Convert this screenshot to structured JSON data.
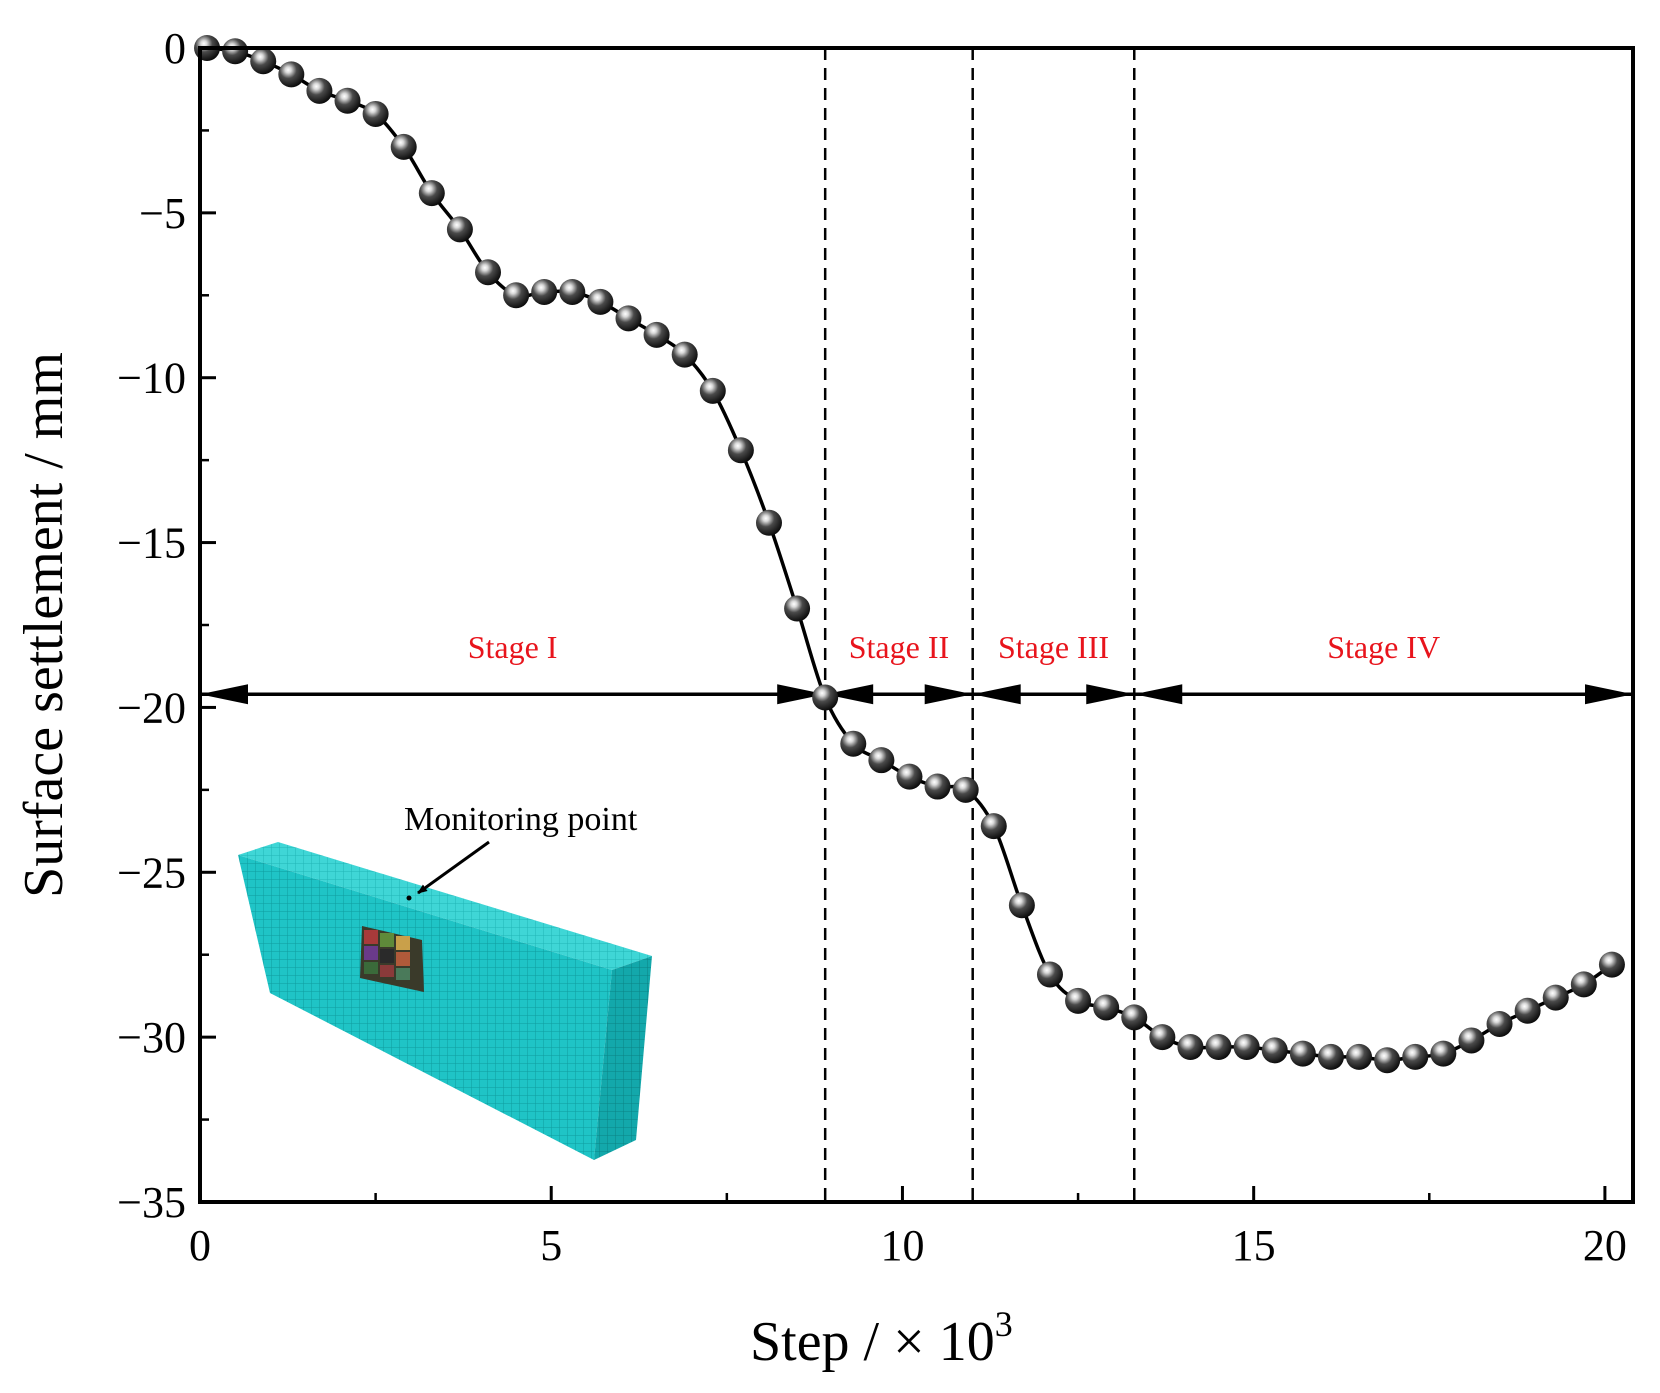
{
  "chart_data": {
    "type": "line",
    "xlabel": "Step / × 10",
    "xlabel_exponent": "3",
    "ylabel": "Surface settlement / mm",
    "xlim": [
      0,
      20.4
    ],
    "ylim": [
      -35,
      0
    ],
    "xticks": [
      0,
      5,
      10,
      15,
      20
    ],
    "xtick_labels": [
      "0",
      "5",
      "10",
      "15",
      "20"
    ],
    "yticks": [
      0,
      -5,
      -10,
      -15,
      -20,
      -25,
      -30,
      -35
    ],
    "ytick_labels": [
      "0",
      "−5",
      "−10",
      "−15",
      "−20",
      "−25",
      "−30",
      "−35"
    ],
    "marker": "sphere",
    "line_color": "#000000",
    "series": [
      {
        "name": "Surface settlement",
        "x": [
          0.1,
          0.5,
          0.9,
          1.3,
          1.7,
          2.1,
          2.5,
          2.9,
          3.3,
          3.7,
          4.1,
          4.5,
          4.9,
          5.3,
          5.7,
          6.1,
          6.5,
          6.9,
          7.3,
          7.7,
          8.1,
          8.5,
          8.9,
          9.3,
          9.7,
          10.1,
          10.5,
          10.9,
          11.3,
          11.7,
          12.1,
          12.5,
          12.9,
          13.3,
          13.7,
          14.1,
          14.5,
          14.9,
          15.3,
          15.7,
          16.1,
          16.5,
          16.9,
          17.3,
          17.7,
          18.1,
          18.5,
          18.9,
          19.3,
          19.7,
          20.1
        ],
        "y": [
          0,
          -0.1,
          -0.4,
          -0.8,
          -1.3,
          -1.6,
          -2.0,
          -3.0,
          -4.4,
          -5.5,
          -6.8,
          -7.5,
          -7.4,
          -7.4,
          -7.7,
          -8.2,
          -8.7,
          -9.3,
          -10.4,
          -12.2,
          -14.4,
          -17.0,
          -19.7,
          -21.1,
          -21.6,
          -22.1,
          -22.4,
          -22.5,
          -23.6,
          -26.0,
          -28.1,
          -28.9,
          -29.1,
          -29.4,
          -30.0,
          -30.3,
          -30.3,
          -30.3,
          -30.4,
          -30.5,
          -30.6,
          -30.6,
          -30.7,
          -30.6,
          -30.5,
          -30.1,
          -29.6,
          -29.2,
          -28.8,
          -28.4,
          -27.8
        ]
      }
    ],
    "stage_boundaries": [
      8.9,
      11.0,
      13.3
    ],
    "stage_arrow_y": -19.6,
    "stages": [
      {
        "label": "Stage I",
        "from": 0,
        "to": 8.9
      },
      {
        "label": "Stage II",
        "from": 8.9,
        "to": 11.0
      },
      {
        "label": "Stage III",
        "from": 11.0,
        "to": 13.3
      },
      {
        "label": "Stage IV",
        "from": 13.3,
        "to": 20.4
      }
    ],
    "stage_label_color": "#e8141c",
    "annotation": "Monitoring point",
    "inset_model_color": "#18c2c4"
  }
}
